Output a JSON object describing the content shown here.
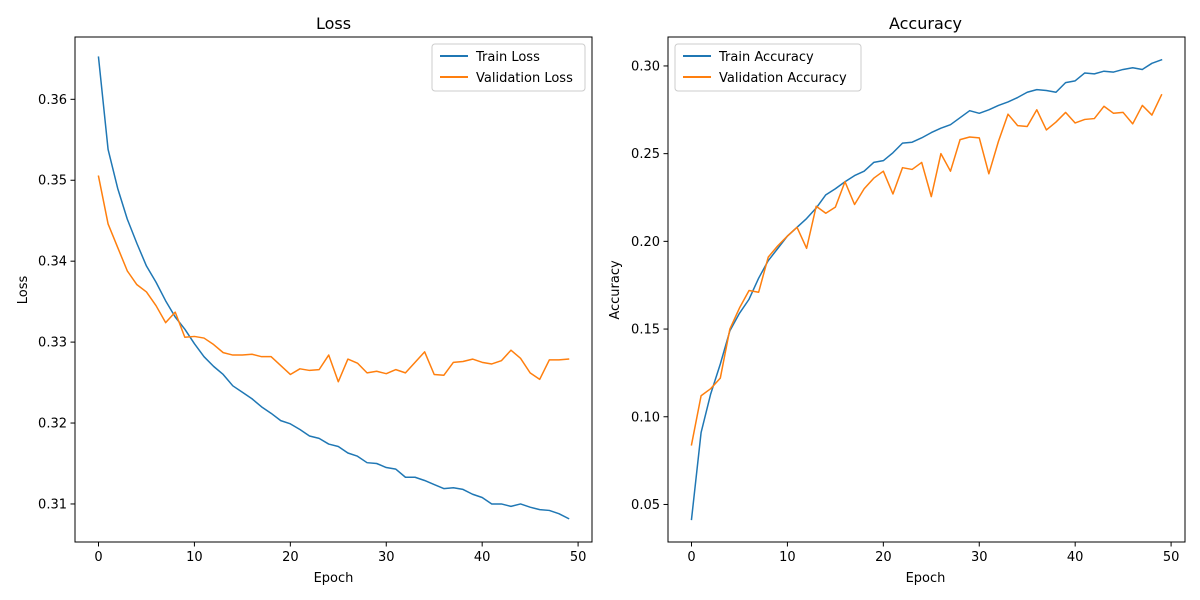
{
  "chart_data": [
    {
      "type": "line",
      "title": "Loss",
      "xlabel": "Epoch",
      "ylabel": "Loss",
      "xlim": [
        -2.45,
        51.45
      ],
      "ylim": [
        0.3053,
        0.3677
      ],
      "xticks": [
        0,
        10,
        20,
        30,
        40,
        50
      ],
      "yticks": [
        0.31,
        0.32,
        0.33,
        0.34,
        0.35,
        0.36
      ],
      "ytick_labels": [
        "0.31",
        "0.32",
        "0.33",
        "0.34",
        "0.35",
        "0.36"
      ],
      "grid": false,
      "legend_position": "top-right",
      "x": [
        0,
        1,
        2,
        3,
        4,
        5,
        6,
        7,
        8,
        9,
        10,
        11,
        12,
        13,
        14,
        15,
        16,
        17,
        18,
        19,
        20,
        21,
        22,
        23,
        24,
        25,
        26,
        27,
        28,
        29,
        30,
        31,
        32,
        33,
        34,
        35,
        36,
        37,
        38,
        39,
        40,
        41,
        42,
        43,
        44,
        45,
        46,
        47,
        48,
        49
      ],
      "series": [
        {
          "name": "Train Loss",
          "color": "#1f77b4",
          "values": [
            0.3652,
            0.3538,
            0.349,
            0.3452,
            0.3422,
            0.3394,
            0.3374,
            0.3351,
            0.3331,
            0.3316,
            0.3298,
            0.3282,
            0.327,
            0.326,
            0.3246,
            0.3238,
            0.323,
            0.322,
            0.3212,
            0.3203,
            0.3199,
            0.3192,
            0.3184,
            0.3181,
            0.3174,
            0.3171,
            0.3163,
            0.3159,
            0.3151,
            0.315,
            0.3145,
            0.3143,
            0.3133,
            0.3133,
            0.3129,
            0.3124,
            0.3119,
            0.312,
            0.3118,
            0.3112,
            0.3108,
            0.31,
            0.31,
            0.3097,
            0.31,
            0.3096,
            0.3093,
            0.3092,
            0.3088,
            0.3082
          ]
        },
        {
          "name": "Validation Loss",
          "color": "#ff7f0e",
          "values": [
            0.3505,
            0.3446,
            0.3417,
            0.3388,
            0.3371,
            0.3362,
            0.3345,
            0.3324,
            0.3337,
            0.3306,
            0.3307,
            0.3305,
            0.3297,
            0.3287,
            0.3284,
            0.3284,
            0.3285,
            0.3282,
            0.3282,
            0.3271,
            0.326,
            0.3267,
            0.3265,
            0.3266,
            0.3284,
            0.3251,
            0.3279,
            0.3274,
            0.3262,
            0.3264,
            0.3261,
            0.3266,
            0.3262,
            0.3275,
            0.3288,
            0.326,
            0.3259,
            0.3275,
            0.3276,
            0.3279,
            0.3275,
            0.3273,
            0.3277,
            0.329,
            0.328,
            0.3262,
            0.3254,
            0.3278,
            0.3278,
            0.3279
          ]
        }
      ]
    },
    {
      "type": "line",
      "title": "Accuracy",
      "xlabel": "Epoch",
      "ylabel": "Accuracy",
      "xlim": [
        -2.45,
        51.45
      ],
      "ylim": [
        0.0286,
        0.3165
      ],
      "xticks": [
        0,
        10,
        20,
        30,
        40,
        50
      ],
      "yticks": [
        0.05,
        0.1,
        0.15,
        0.2,
        0.25,
        0.3
      ],
      "ytick_labels": [
        "0.05",
        "0.10",
        "0.15",
        "0.20",
        "0.25",
        "0.30"
      ],
      "grid": false,
      "legend_position": "top-left",
      "x": [
        0,
        1,
        2,
        3,
        4,
        5,
        6,
        7,
        8,
        9,
        10,
        11,
        12,
        13,
        14,
        15,
        16,
        17,
        18,
        19,
        20,
        21,
        22,
        23,
        24,
        25,
        26,
        27,
        28,
        29,
        30,
        31,
        32,
        33,
        34,
        35,
        36,
        37,
        38,
        39,
        40,
        41,
        42,
        43,
        44,
        45,
        46,
        47,
        48,
        49
      ],
      "series": [
        {
          "name": "Train Accuracy",
          "color": "#1f77b4",
          "values": [
            0.0415,
            0.091,
            0.113,
            0.13,
            0.149,
            0.159,
            0.167,
            0.179,
            0.189,
            0.196,
            0.203,
            0.208,
            0.213,
            0.219,
            0.2265,
            0.23,
            0.234,
            0.2375,
            0.24,
            0.245,
            0.246,
            0.2505,
            0.256,
            0.2565,
            0.259,
            0.262,
            0.2645,
            0.2665,
            0.2705,
            0.2745,
            0.273,
            0.275,
            0.2775,
            0.2795,
            0.282,
            0.285,
            0.2865,
            0.286,
            0.285,
            0.2905,
            0.2915,
            0.296,
            0.2955,
            0.297,
            0.2965,
            0.298,
            0.299,
            0.298,
            0.3015,
            0.3035
          ]
        },
        {
          "name": "Validation Accuracy",
          "color": "#ff7f0e",
          "values": [
            0.084,
            0.112,
            0.116,
            0.122,
            0.15,
            0.162,
            0.172,
            0.171,
            0.191,
            0.1975,
            0.203,
            0.208,
            0.196,
            0.22,
            0.216,
            0.2195,
            0.234,
            0.221,
            0.23,
            0.236,
            0.24,
            0.227,
            0.242,
            0.241,
            0.245,
            0.2255,
            0.25,
            0.24,
            0.258,
            0.2595,
            0.259,
            0.2385,
            0.257,
            0.2725,
            0.266,
            0.2655,
            0.275,
            0.2635,
            0.268,
            0.2735,
            0.2675,
            0.2695,
            0.27,
            0.277,
            0.273,
            0.2735,
            0.267,
            0.2775,
            0.272,
            0.2835
          ]
        }
      ]
    }
  ]
}
